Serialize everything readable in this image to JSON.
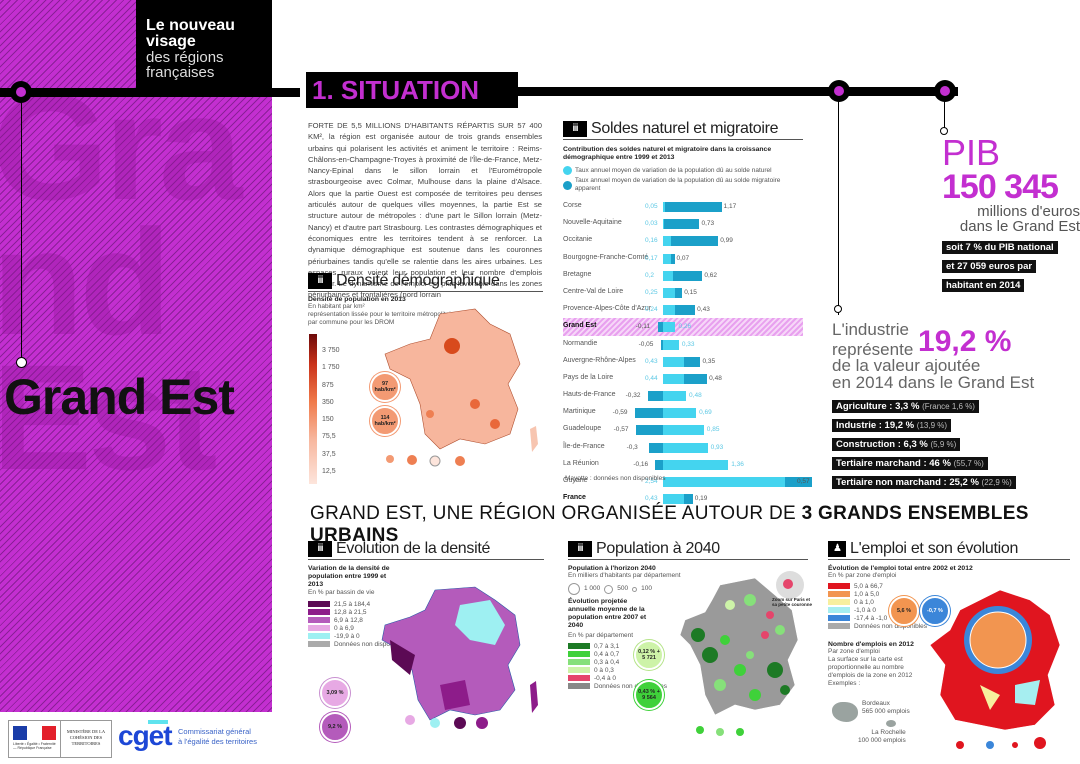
{
  "header": {
    "series_title_bold_1": "Le nouveau",
    "series_title_bold_2": "visage",
    "series_title_light_1": "des régions",
    "series_title_light_2": "françaises",
    "region_name": "Grand Est",
    "ghost_text": [
      "Gra",
      "nd",
      "Est"
    ],
    "section_title": "1. SITUATION"
  },
  "colors": {
    "accent": "#c32fd0",
    "black": "#000000",
    "cyan_natural": "#44d4ef",
    "blue_migratory": "#1ba0c9"
  },
  "intro": {
    "text": "FORTE DE 5,5 MILLIONS D'HABITANTS RÉPARTIS SUR 57 400 KM², la région est organisée autour de trois grands ensembles urbains qui polarisent les activités et animent le territoire : Reims-Châlons-en-Champagne-Troyes à proximité de l'Île-de-France, Metz-Nancy-Epinal dans le sillon lorrain et l'Eurométropole strasbourgeoise avec Colmar, Mulhouse dans la plaine d'Alsace. Alors que la partie Ouest est composée de territoires peu denses articulés autour de quelques villes moyennes, la partie Est se structure autour de métropoles : d'une part le Sillon lorrain (Metz-Nancy) et d'autre part Strasbourg. Les contrastes démographiques et économiques entre les territoires tendent à se renforcer. La dynamique démographique est soutenue dans les couronnes périurbaines tandis qu'elle se ralentie dans les aires urbaines. Les espaces ruraux voient leur population et leur nombre d'emplois décliner. Le dynamisme de l'emploi est plus favorable dans les zones périurbaines et frontalières (nord lorrain"
  },
  "density": {
    "title": "Densité démographique",
    "subtitle": "Densité de population en 2013",
    "unit": "En habitant par km²",
    "note1": "représentation lissée pour le territoire métropolitain,",
    "note2": "par commune pour les DROM",
    "legend": [
      "3 750",
      "1 750",
      "875",
      "350",
      "150",
      "75,5",
      "37,5",
      "12,5"
    ],
    "region_badge_label": "LA RÉGION",
    "region_value": "97 hab/km²",
    "france_badge_label": "FRANCE",
    "france_value": "114 hab/km²"
  },
  "soldes": {
    "title": "Soldes naturel et migratoire",
    "subtitle": "Contribution des soldes naturel et migratoire dans la croissance démographique entre 1999 et 2013",
    "legend_natural": "Taux annuel moyen de variation de la population dû au solde naturel",
    "legend_migratory": "Taux annuel moyen de variation de la population dû au solde migratoire apparent",
    "footnote": "Mayotte : données non disponibles"
  },
  "chart_data": {
    "type": "bar",
    "title": "Contribution des soldes naturel et migratoire dans la croissance démographique entre 1999 et 2013",
    "categories": [
      "Corse",
      "Nouvelle-Aquitaine",
      "Occitanie",
      "Bourgogne-Franche-Comté",
      "Bretagne",
      "Centre-Val de Loire",
      "Provence-Alpes-Côte d'Azur",
      "Grand Est",
      "Normandie",
      "Auvergne-Rhône-Alpes",
      "Pays de la Loire",
      "Hauts-de-France",
      "Martinique",
      "Guadeloupe",
      "Île-de-France",
      "La Réunion",
      "Guyane",
      "France"
    ],
    "series": [
      {
        "name": "Solde naturel",
        "values": [
          0.05,
          0.03,
          0.16,
          0.17,
          0.2,
          0.25,
          0.24,
          0.26,
          0.33,
          0.43,
          0.44,
          0.48,
          0.69,
          0.85,
          0.93,
          1.36,
          2.54,
          0.43
        ]
      },
      {
        "name": "Solde migratoire apparent",
        "values": [
          1.17,
          0.73,
          0.99,
          0.07,
          0.62,
          0.15,
          0.43,
          -0.11,
          -0.05,
          0.35,
          0.48,
          -0.32,
          -0.59,
          -0.57,
          -0.3,
          -0.16,
          0.57,
          0.19
        ]
      }
    ],
    "highlight": "Grand Est"
  },
  "pib": {
    "label": "PIB",
    "value": "150 345",
    "unit_line1": "millions d'euros",
    "unit_line2": "dans le Grand Est",
    "note1": "soit 7 % du PIB national",
    "note2": "et 27 059 euros par",
    "note3": "habitant en 2014"
  },
  "industrie": {
    "line1": "L'industrie",
    "line2": "représente",
    "value": "19,2 %",
    "line3": "de la valeur ajoutée",
    "line4": "en 2014 dans le Grand Est",
    "sectors": [
      {
        "label": "Agriculture : 3,3 %",
        "france": "(France 1,6 %)"
      },
      {
        "label": "Industrie : 19,2 %",
        "france": "(13,9 %)"
      },
      {
        "label": "Construction : 6,3 %",
        "france": "(5,9 %)"
      },
      {
        "label": "Tertiaire marchand : 46 %",
        "france": "(55,7 %)"
      },
      {
        "label": "Tertiaire non marchand : 25,2 %",
        "france": "(22,9 %)"
      }
    ]
  },
  "bottom": {
    "title_regular": "GRAND EST, UNE RÉGION ORGANISÉE AUTOUR DE ",
    "title_bold": "3 GRANDS ENSEMBLES URBAINS",
    "evolution": {
      "title": "Évolution de la densité",
      "subtitle": "Variation de la densité de population entre 1999 et 2013",
      "unit": "En % par bassin de vie",
      "legend": [
        {
          "label": "21,5 à 184,4",
          "color": "#5c0a55"
        },
        {
          "label": "12,8 à 21,5",
          "color": "#8d1c8a"
        },
        {
          "label": "6,9 à 12,8",
          "color": "#b45bbb"
        },
        {
          "label": "0 à 6,9",
          "color": "#e7a9e4"
        },
        {
          "label": "-19,9 à 0",
          "color": "#9ef0f2"
        },
        {
          "label": "Données non disponibles",
          "color": "#aaaaaa"
        }
      ],
      "region_label": "LA RÉGION",
      "region_value": "3,09 %",
      "france_label": "FRANCE",
      "france_value": "9,2 %"
    },
    "population": {
      "title": "Population à 2040",
      "subtitle": "Population à l'horizon 2040",
      "unit": "En milliers d'habitants par département",
      "sizes": [
        "1 000",
        "500",
        "100"
      ],
      "evo_title": "Évolution projetée annuelle moyenne de la population entre 2007 et 2040",
      "evo_unit": "En % par département",
      "legend": [
        {
          "label": "0,7 à 3,1",
          "color": "#1d7a25"
        },
        {
          "label": "0,4 à 0,7",
          "color": "#3fd13a"
        },
        {
          "label": "0,3 à 0,4",
          "color": "#86e07a"
        },
        {
          "label": "0 à 0,3",
          "color": "#cdf3a8"
        },
        {
          "label": "-0,4 à 0",
          "color": "#e5456b"
        },
        {
          "label": "Données non disponibles",
          "color": "#888888"
        }
      ],
      "zoom_label": "Zoom sur Paris et sa petite couronne",
      "region_label": "LA RÉGION",
      "region_value": "0,12 % + 5 721",
      "france_label": "FRANCE",
      "france_value": "0,43 % + 9 564"
    },
    "emploi": {
      "title": "L'emploi et son évolution",
      "subtitle": "Évolution de l'emploi total entre 2002 et 2012",
      "unit": "En % par zone d'emploi",
      "legend": [
        {
          "label": "5,0 à 66,7",
          "color": "#e0151f"
        },
        {
          "label": "1,0 à 5,0",
          "color": "#f29550"
        },
        {
          "label": "0 à 1,0",
          "color": "#f7ef9e"
        },
        {
          "label": "-1,0 à 0",
          "color": "#a6eef0"
        },
        {
          "label": "-17,4 à -1,0",
          "color": "#3b86d9"
        },
        {
          "label": "Données non disponibles",
          "color": "#aaaaaa"
        }
      ],
      "france_label": "FRANCE",
      "france_value": "5,6 %",
      "region_label": "LA RÉGION",
      "region_value": "-0,7 %",
      "count_title": "Nombre d'emplois en 2012",
      "count_unit": "Par zone d'emploi",
      "count_note": "La surface sur la carte est proportionnelle au nombre d'emplois de la zone en 2012",
      "examples": "Exemples :",
      "ex1": "Bordeaux",
      "ex1_val": "565 000 emplois",
      "ex2": "La Rochelle",
      "ex2_val": "100 000 emplois"
    }
  },
  "footer": {
    "ministry": "MINISTÈRE DE LA COHÉSION DES TERRITOIRES",
    "marianne": "Liberté • Égalité • Fraternité — République Française",
    "cget": "cget",
    "cget_desc1": "Commissariat général",
    "cget_desc2": "à l'égalité des territoires"
  }
}
